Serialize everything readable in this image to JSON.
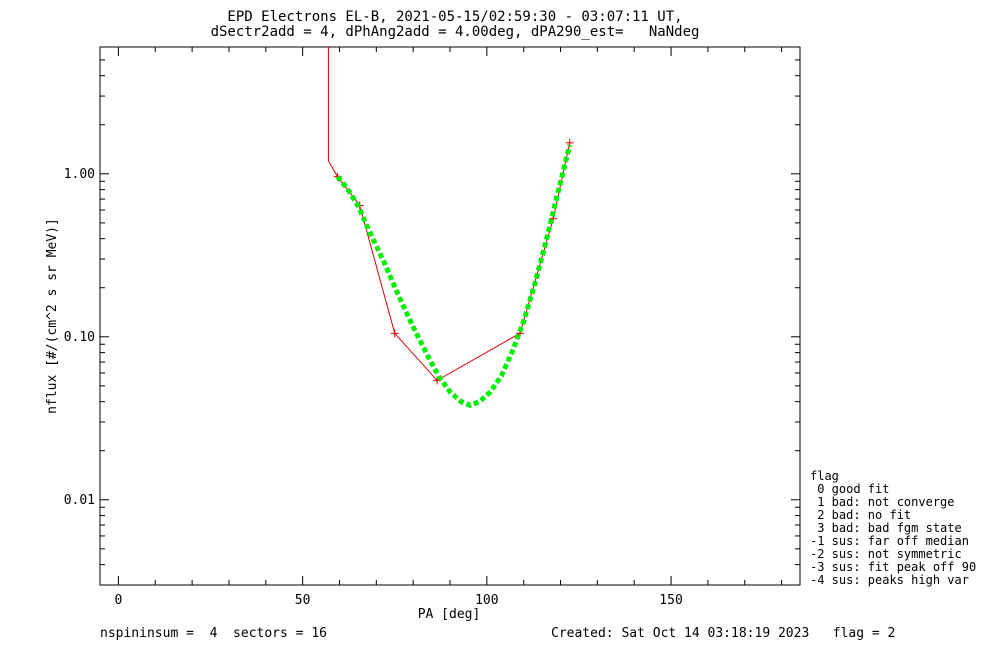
{
  "header": {
    "title_line1": "EPD Electrons EL-B, 2021-05-15/02:59:30 - 03:07:11 UT,",
    "title_line2": "dSectr2add = 4, dPhAng2add = 4.00deg, dPA290_est=   NaNdeg"
  },
  "footer": {
    "left": "nspininsum =  4  sectors = 16",
    "right": "Created: Sat Oct 14 03:18:19 2023   flag = 2"
  },
  "legend": {
    "items": [
      "flag",
      " 0 good fit",
      " 1 bad: not converge",
      " 2 bad: no fit",
      " 3 bad: bad fgm state",
      "-1 sus: far off median",
      "-2 sus: not symmetric",
      "-3 sus: fit peak off 90",
      "-4 sus: peaks high var"
    ]
  },
  "colors": {
    "data": "#dd0000",
    "fit": "#00ee00",
    "axes": "#000000"
  },
  "chart_data": {
    "type": "line",
    "xlabel": "PA [deg]",
    "ylabel": "nflux [#/(cm^2 s sr MeV)]",
    "xlim": [
      -5,
      185
    ],
    "ylim": [
      0.003,
      6
    ],
    "y_log": true,
    "x_ticks": [
      0,
      50,
      100,
      150
    ],
    "x_tick_labels": [
      "0",
      "50",
      "100",
      "150"
    ],
    "y_ticks": [
      0.01,
      0.1,
      1.0
    ],
    "y_tick_labels": [
      "0.01",
      "0.10",
      "1.00"
    ],
    "series": [
      {
        "style": "line+plus",
        "color": "#dd0000",
        "x": [
          57,
          57,
          59.5,
          65.5,
          75,
          86.5,
          109,
          118,
          122.5
        ],
        "y": [
          6,
          1.2,
          0.96,
          0.64,
          0.105,
          0.054,
          0.105,
          0.53,
          1.55
        ],
        "marked": [
          false,
          false,
          true,
          true,
          true,
          true,
          true,
          true,
          true
        ]
      },
      {
        "style": "dashed",
        "color": "#00ee00",
        "x": [
          59.5,
          62,
          65,
          68,
          72,
          76,
          80,
          84,
          87,
          90,
          93,
          95.5,
          98,
          101,
          104,
          107,
          110,
          113,
          116,
          119,
          122.5
        ],
        "y": [
          0.96,
          0.82,
          0.64,
          0.45,
          0.29,
          0.18,
          0.115,
          0.076,
          0.057,
          0.046,
          0.04,
          0.038,
          0.04,
          0.046,
          0.058,
          0.082,
          0.125,
          0.21,
          0.38,
          0.72,
          1.5
        ]
      }
    ]
  }
}
